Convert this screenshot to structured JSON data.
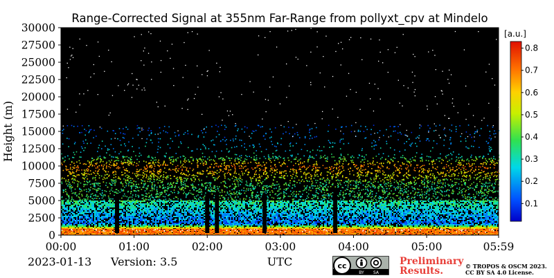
{
  "chart_data": {
    "type": "heatmap",
    "title": "Range-Corrected Signal at 355nm Far-Range from pollyxt_cpv at Mindelo",
    "ylabel": "Height (m)",
    "xlabel": "UTC",
    "y_ticks": [
      "0",
      "2500",
      "5000",
      "7500",
      "10000",
      "12500",
      "15000",
      "17500",
      "20000",
      "22500",
      "25000",
      "27500",
      "30000"
    ],
    "x_ticks": [
      "00:00",
      "01:00",
      "02:00",
      "03:00",
      "04:00",
      "05:00",
      "05:59"
    ],
    "ylim": [
      0,
      30000
    ],
    "x_range": [
      "00:00",
      "05:59"
    ],
    "colorbar": {
      "unit": "[a.u.]",
      "ticks": [
        "0.1",
        "0.2",
        "0.3",
        "0.4",
        "0.5",
        "0.6",
        "0.7",
        "0.8"
      ],
      "range": [
        0.02,
        0.83
      ],
      "colormap": "jet"
    },
    "signal_profile": [
      {
        "height_m": 0,
        "value": 0.7
      },
      {
        "height_m": 800,
        "value": 0.72
      },
      {
        "height_m": 1500,
        "value": 0.15
      },
      {
        "height_m": 2500,
        "value": 0.2
      },
      {
        "height_m": 5000,
        "value": 0.35
      },
      {
        "height_m": 7500,
        "value": 0.38
      },
      {
        "height_m": 10000,
        "value": 0.7
      },
      {
        "height_m": 11500,
        "value": 0.3
      },
      {
        "height_m": 15000,
        "value": 0.15
      },
      {
        "height_m": 30000,
        "value": 0.05
      }
    ],
    "gap_times": [
      "00:46",
      "02:00",
      "02:08",
      "02:47",
      "03:45"
    ]
  },
  "footer": {
    "date": "2023-01-13",
    "version": "Version: 3.5",
    "preliminary": "Preliminary Results.",
    "license_line1": "© TROPOS & OSCM 2023.",
    "license_line2": "CC BY SA 4.0 License.",
    "cc_labels": [
      "BY",
      "SA"
    ]
  },
  "colors": {
    "background": "#000000",
    "preliminary": "#e8403a"
  }
}
